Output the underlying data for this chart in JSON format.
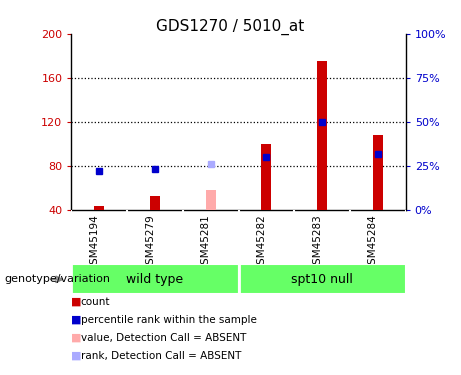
{
  "title": "GDS1270 / 5010_at",
  "samples": [
    "GSM45194",
    "GSM45279",
    "GSM45281",
    "GSM45282",
    "GSM45283",
    "GSM45284"
  ],
  "count_values": [
    44,
    53,
    null,
    100,
    175,
    108
  ],
  "rank_values": [
    22,
    23,
    null,
    30,
    50,
    32
  ],
  "absent_count_values": [
    null,
    null,
    58,
    null,
    null,
    null
  ],
  "absent_rank_values": [
    null,
    null,
    26,
    null,
    null,
    null
  ],
  "ylim_left": [
    40,
    200
  ],
  "ylim_right": [
    0,
    100
  ],
  "yticks_left": [
    40,
    80,
    120,
    160,
    200
  ],
  "yticks_right": [
    0,
    25,
    50,
    75,
    100
  ],
  "count_color": "#cc0000",
  "rank_color": "#0000cc",
  "absent_count_color": "#ffaaaa",
  "absent_rank_color": "#aaaaff",
  "bg_color": "#cccccc",
  "green_color": "#66ff66",
  "legend_items": [
    {
      "label": "count",
      "color": "#cc0000"
    },
    {
      "label": "percentile rank within the sample",
      "color": "#0000cc"
    },
    {
      "label": "value, Detection Call = ABSENT",
      "color": "#ffaaaa"
    },
    {
      "label": "rank, Detection Call = ABSENT",
      "color": "#aaaaff"
    }
  ],
  "wt_label": "wild type",
  "spt_label": "spt10 null",
  "geno_label": "genotype/variation"
}
